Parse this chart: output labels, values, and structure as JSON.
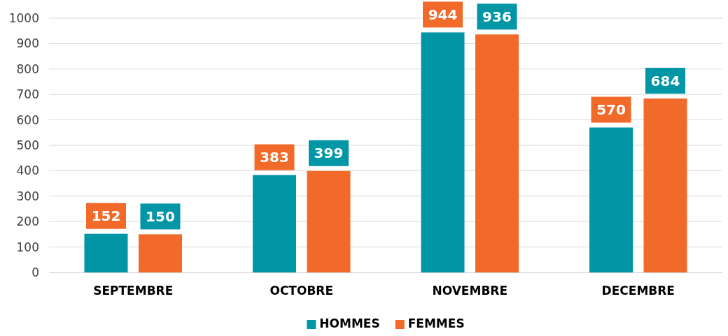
{
  "chart_data": {
    "type": "bar",
    "categories": [
      "SEPTEMBRE",
      "OCTOBRE",
      "NOVEMBRE",
      "DECEMBRE"
    ],
    "series": [
      {
        "name": "HOMMES",
        "color": "#0096a6",
        "values": [
          152,
          383,
          944,
          570
        ]
      },
      {
        "name": "FEMMES",
        "color": "#f26a2a",
        "values": [
          150,
          399,
          936,
          684
        ]
      }
    ],
    "ylim": [
      0,
      1000
    ],
    "yticks": [
      0,
      100,
      200,
      300,
      400,
      500,
      600,
      700,
      800,
      900,
      1000
    ],
    "grid": "y",
    "legend": "bottom",
    "data_labels": true
  }
}
